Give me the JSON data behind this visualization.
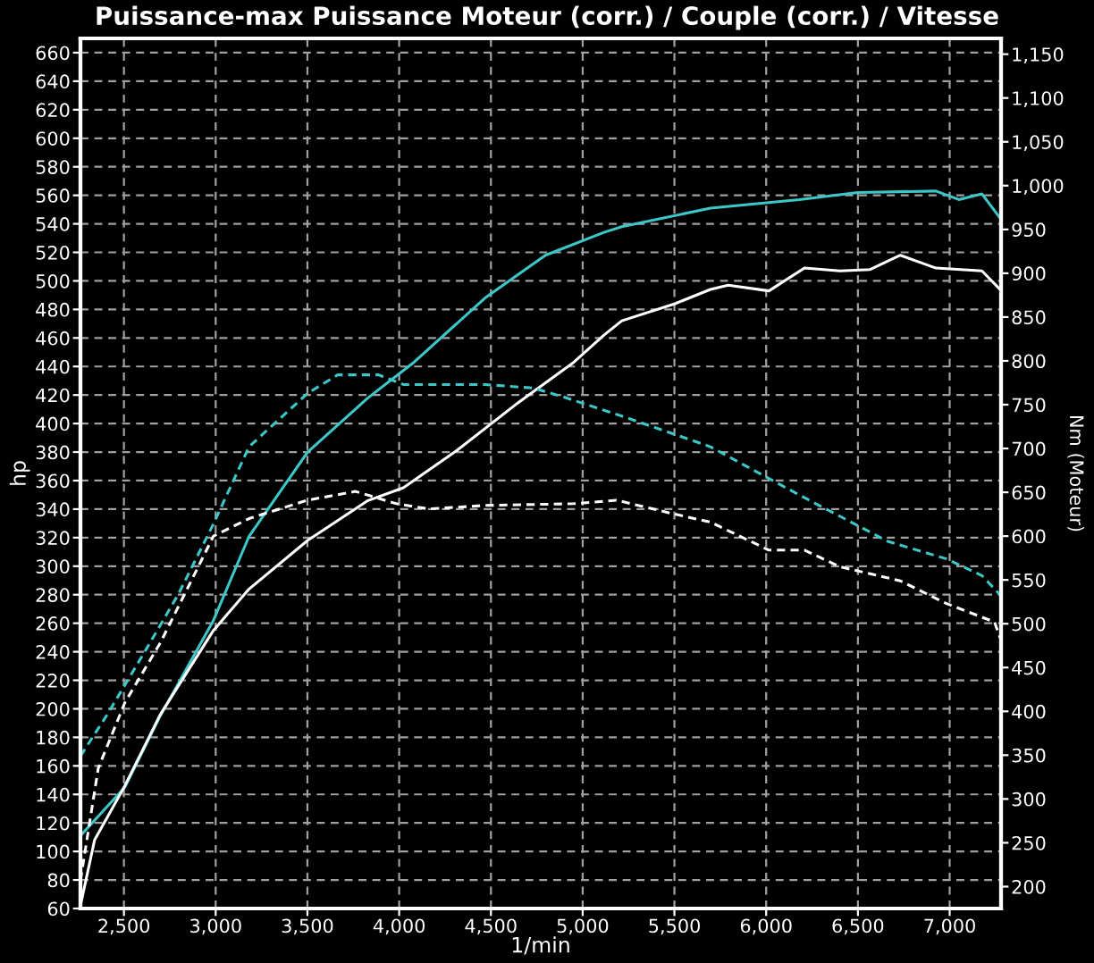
{
  "chart_data": {
    "type": "line",
    "title": "Puissance-max Puissance Moteur (corr.) / Couple (corr.) / Vitesse",
    "xlabel": "1/min",
    "ylabel": "hp",
    "y2label": "Nm (Moteur)",
    "xlim": [
      2263,
      7280
    ],
    "ylim": [
      60,
      670
    ],
    "y2lim": [
      175,
      1168
    ],
    "xticks": [
      {
        "value": 2500,
        "label": "2,500"
      },
      {
        "value": 3000,
        "label": "3,000"
      },
      {
        "value": 3500,
        "label": "3,500"
      },
      {
        "value": 4000,
        "label": "4,000"
      },
      {
        "value": 4500,
        "label": "4,500"
      },
      {
        "value": 5000,
        "label": "5,000"
      },
      {
        "value": 5500,
        "label": "5,500"
      },
      {
        "value": 6000,
        "label": "6,000"
      },
      {
        "value": 6500,
        "label": "6,500"
      },
      {
        "value": 7000,
        "label": "7,000"
      }
    ],
    "yticks": [
      60,
      80,
      100,
      120,
      140,
      160,
      180,
      200,
      220,
      240,
      260,
      280,
      300,
      320,
      340,
      360,
      380,
      400,
      420,
      440,
      460,
      480,
      500,
      520,
      540,
      560,
      580,
      600,
      620,
      640,
      660
    ],
    "y2ticks": [
      200,
      250,
      300,
      350,
      400,
      450,
      500,
      550,
      600,
      650,
      700,
      750,
      800,
      850,
      900,
      950,
      {
        "value": 1000,
        "label": "1,000"
      },
      {
        "value": 1050,
        "label": "1,050"
      },
      {
        "value": 1100,
        "label": "1,100"
      },
      {
        "value": 1150,
        "label": "1,150"
      }
    ],
    "grid": true,
    "series": [
      {
        "color": "#3cc8c8",
        "line_style": "solid",
        "x": [
          2263,
          2505,
          2698,
          2988,
          3182,
          3501,
          3830,
          4081,
          4468,
          4797,
          5116,
          5213,
          5696,
          6180,
          6499,
          6925,
          7050,
          7176,
          7275
        ],
        "values": [
          111,
          145,
          195,
          262,
          321,
          380,
          418,
          443,
          488,
          518,
          534,
          538,
          551,
          557,
          562,
          563,
          557,
          561,
          544
        ]
      },
      {
        "color": "#ffffff",
        "line_style": "solid",
        "x": [
          2263,
          2340,
          2505,
          2698,
          2988,
          3182,
          3501,
          3830,
          4023,
          4313,
          4632,
          4952,
          5116,
          5213,
          5503,
          5696,
          5793,
          6015,
          6209,
          6402,
          6567,
          6731,
          6925,
          7176,
          7275
        ],
        "values": [
          62,
          108,
          146,
          196,
          255,
          284,
          318,
          346,
          355,
          381,
          413,
          443,
          462,
          472,
          484,
          494,
          497,
          493,
          509,
          507,
          508,
          518,
          509,
          507,
          494
        ]
      },
      {
        "color": "#3cc8c8",
        "line_style": "dashed",
        "axis": "y2",
        "x": [
          2263,
          2408,
          2602,
          2795,
          2988,
          3182,
          3501,
          3665,
          3888,
          4023,
          4468,
          4729,
          4893,
          5213,
          5696,
          6180,
          6663,
          6983,
          7176,
          7275
        ],
        "values": [
          349,
          396,
          464,
          533,
          614,
          702,
          763,
          784,
          784,
          773,
          773,
          769,
          759,
          737,
          702,
          647,
          594,
          574,
          555,
          533
        ]
      },
      {
        "color": "#ffffff",
        "line_style": "dashed",
        "axis": "y2",
        "x": [
          2263,
          2360,
          2505,
          2698,
          2988,
          3182,
          3501,
          3762,
          3985,
          4162,
          4468,
          4952,
          5184,
          5503,
          5696,
          6015,
          6209,
          6402,
          6731,
          6983,
          7244,
          7275
        ],
        "values": [
          207,
          335,
          410,
          478,
          600,
          620,
          641,
          651,
          637,
          631,
          635,
          637,
          641,
          625,
          616,
          584,
          584,
          565,
          549,
          523,
          502,
          484
        ]
      }
    ]
  }
}
